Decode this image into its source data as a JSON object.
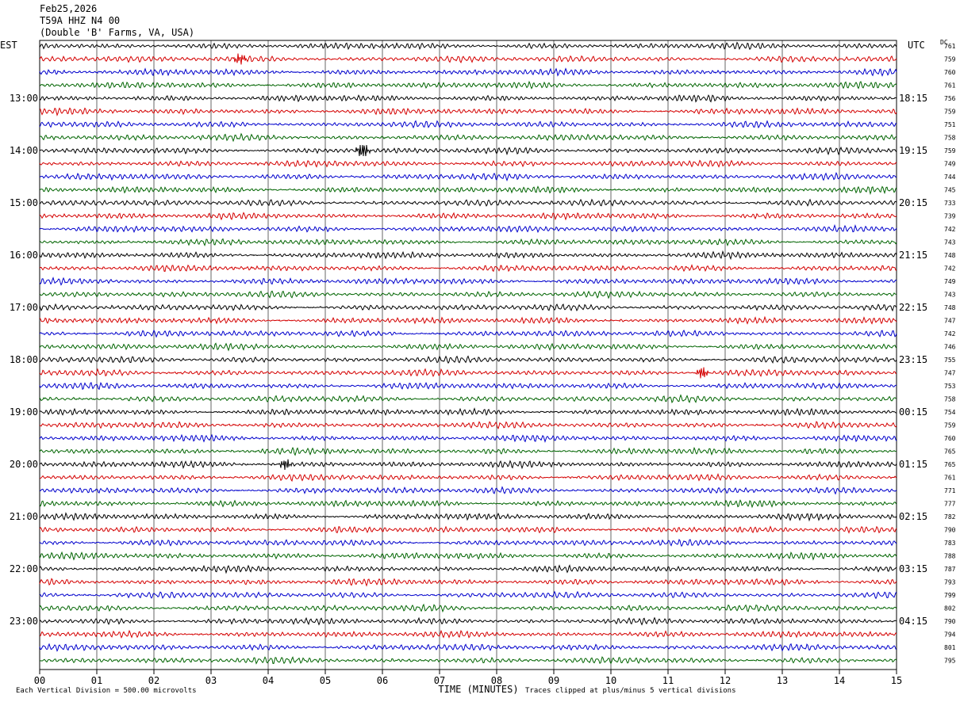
{
  "header": {
    "date": "Feb25,2026",
    "station": "T59A HHZ N4 00",
    "location": "(Double 'B' Farms, VA, USA)"
  },
  "left_timezone": "EST",
  "right_timezone": "UTC",
  "dc_label": "DC",
  "footer": {
    "scale_note": "Each Vertical Division =  500.00 microvolts",
    "clip_note": "Traces clipped at plus/minus 5 vertical divisions"
  },
  "colors": {
    "cycle": [
      "#000000",
      "#d40000",
      "#0000cc",
      "#006400"
    ],
    "grid": "#000000"
  },
  "chart_data": {
    "type": "line",
    "subtype": "helicorder",
    "xlabel": "TIME (MINUTES)",
    "x_ticks": [
      "00",
      "01",
      "02",
      "03",
      "04",
      "05",
      "06",
      "07",
      "08",
      "09",
      "10",
      "11",
      "12",
      "13",
      "14",
      "15"
    ],
    "xlim": [
      0,
      15
    ],
    "rows_per_hour": 4,
    "row_count": 48,
    "left_hour_labels": [
      "13:00",
      "14:00",
      "15:00",
      "16:00",
      "17:00",
      "18:00",
      "19:00",
      "20:00",
      "21:00",
      "22:00",
      "23:00"
    ],
    "right_hour_labels": [
      "18:15",
      "19:15",
      "20:15",
      "21:15",
      "22:15",
      "23:15",
      "00:15",
      "01:15",
      "02:15",
      "03:15",
      "04:15"
    ],
    "hour_label_first_row": 4,
    "dc_offsets": [
      761,
      759,
      760,
      761,
      756,
      759,
      751,
      758,
      759,
      749,
      744,
      745,
      733,
      739,
      742,
      743,
      748,
      742,
      749,
      743,
      748,
      747,
      742,
      746,
      755,
      747,
      753,
      758,
      754,
      759,
      760,
      765,
      765,
      761,
      771,
      777,
      782,
      790,
      783,
      788,
      787,
      793,
      799,
      802,
      790,
      794,
      801,
      795
    ],
    "events": [
      {
        "row": 1,
        "minute": 3.5,
        "amplitude": 2.2
      },
      {
        "row": 8,
        "minute": 5.65,
        "amplitude": 3.5
      },
      {
        "row": 25,
        "minute": 11.6,
        "amplitude": 2.0
      },
      {
        "row": 32,
        "minute": 4.3,
        "amplitude": 1.8
      }
    ]
  }
}
